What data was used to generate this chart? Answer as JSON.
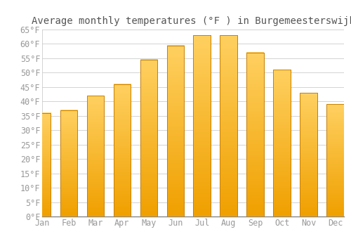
{
  "title": "Average monthly temperatures (°F ) in Burgemeesterswijk",
  "months": [
    "Jan",
    "Feb",
    "Mar",
    "Apr",
    "May",
    "Jun",
    "Jul",
    "Aug",
    "Sep",
    "Oct",
    "Nov",
    "Dec"
  ],
  "values": [
    36,
    37,
    42,
    46,
    54.5,
    59.5,
    63,
    63,
    57,
    51,
    43,
    39
  ],
  "bar_color_top": "#FFD060",
  "bar_color_bottom": "#F0A000",
  "bar_edge_color": "#C88000",
  "background_color": "#FFFFFF",
  "grid_color": "#CCCCCC",
  "text_color": "#999999",
  "title_color": "#555555",
  "ylim": [
    0,
    65
  ],
  "yticks": [
    0,
    5,
    10,
    15,
    20,
    25,
    30,
    35,
    40,
    45,
    50,
    55,
    60,
    65
  ],
  "ylabel_suffix": "°F",
  "title_fontsize": 10,
  "tick_fontsize": 8.5
}
